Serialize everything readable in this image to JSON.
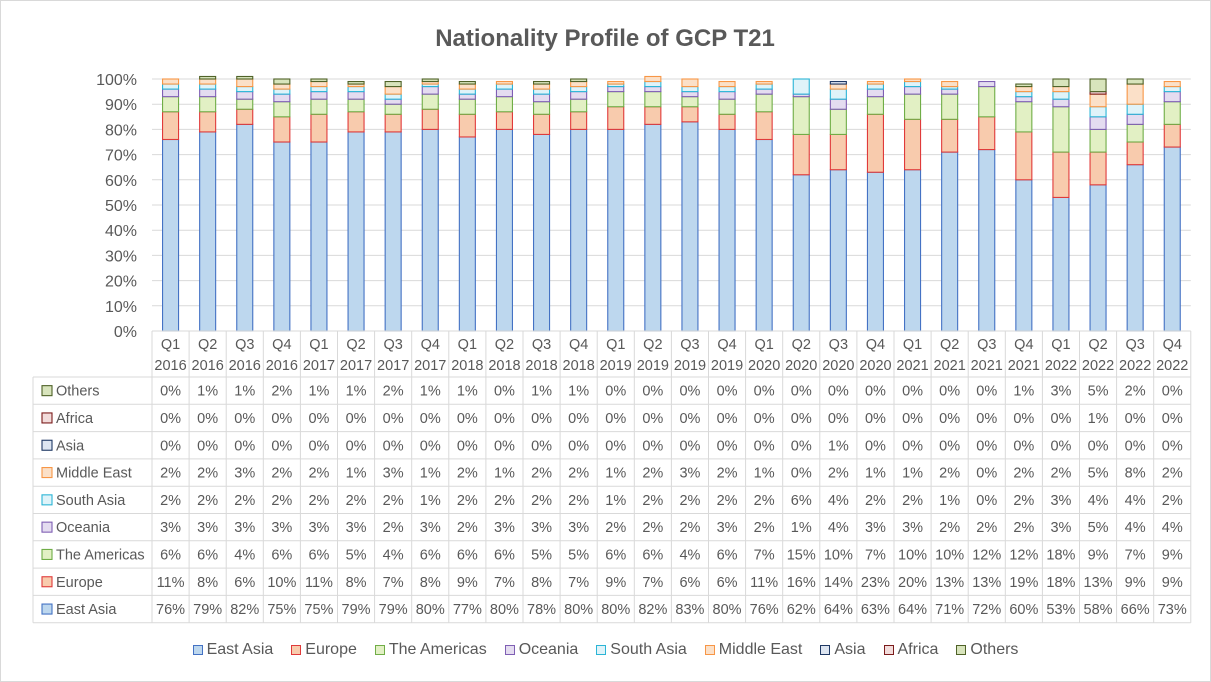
{
  "chart_data": {
    "type": "bar",
    "stacked": true,
    "title": "Nationality Profile of GCP T21",
    "categories": [
      [
        "Q1",
        "2016"
      ],
      [
        "Q2",
        "2016"
      ],
      [
        "Q3",
        "2016"
      ],
      [
        "Q4",
        "2016"
      ],
      [
        "Q1",
        "2017"
      ],
      [
        "Q2",
        "2017"
      ],
      [
        "Q3",
        "2017"
      ],
      [
        "Q4",
        "2017"
      ],
      [
        "Q1",
        "2018"
      ],
      [
        "Q2",
        "2018"
      ],
      [
        "Q3",
        "2018"
      ],
      [
        "Q4",
        "2018"
      ],
      [
        "Q1",
        "2019"
      ],
      [
        "Q2",
        "2019"
      ],
      [
        "Q3",
        "2019"
      ],
      [
        "Q4",
        "2019"
      ],
      [
        "Q1",
        "2020"
      ],
      [
        "Q2",
        "2020"
      ],
      [
        "Q3",
        "2020"
      ],
      [
        "Q4",
        "2020"
      ],
      [
        "Q1",
        "2021"
      ],
      [
        "Q2",
        "2021"
      ],
      [
        "Q3",
        "2021"
      ],
      [
        "Q4",
        "2021"
      ],
      [
        "Q1",
        "2022"
      ],
      [
        "Q2",
        "2022"
      ],
      [
        "Q3",
        "2022"
      ],
      [
        "Q4",
        "2022"
      ]
    ],
    "y_ticks": [
      "0%",
      "10%",
      "20%",
      "30%",
      "40%",
      "50%",
      "60%",
      "70%",
      "80%",
      "90%",
      "100%"
    ],
    "ylim": [
      0,
      100
    ],
    "grid": true,
    "legend_position": "bottom",
    "series": [
      {
        "name": "East Asia",
        "fill": "#bdd7ee",
        "stroke": "#4472c4",
        "values": [
          76,
          79,
          82,
          75,
          75,
          79,
          79,
          80,
          77,
          80,
          78,
          80,
          80,
          82,
          83,
          80,
          76,
          62,
          64,
          63,
          64,
          71,
          72,
          60,
          53,
          58,
          66,
          73
        ]
      },
      {
        "name": "Europe",
        "fill": "#f8cbad",
        "stroke": "#e03a3a",
        "values": [
          11,
          8,
          6,
          10,
          11,
          8,
          7,
          8,
          9,
          7,
          8,
          7,
          9,
          7,
          6,
          6,
          11,
          16,
          14,
          23,
          20,
          13,
          13,
          19,
          18,
          13,
          9,
          9
        ]
      },
      {
        "name": "The Americas",
        "fill": "#e2f0c4",
        "stroke": "#70ad47",
        "values": [
          6,
          6,
          4,
          6,
          6,
          5,
          4,
          6,
          6,
          6,
          5,
          5,
          6,
          6,
          4,
          6,
          7,
          15,
          10,
          7,
          10,
          10,
          12,
          12,
          18,
          9,
          7,
          9
        ]
      },
      {
        "name": "Oceania",
        "fill": "#e4dcf0",
        "stroke": "#7f5fb4",
        "values": [
          3,
          3,
          3,
          3,
          3,
          3,
          2,
          3,
          2,
          3,
          3,
          3,
          2,
          2,
          2,
          3,
          2,
          1,
          4,
          3,
          3,
          2,
          2,
          2,
          3,
          5,
          4,
          4
        ]
      },
      {
        "name": "South Asia",
        "fill": "#dff3f9",
        "stroke": "#2bb5d6",
        "values": [
          2,
          2,
          2,
          2,
          2,
          2,
          2,
          1,
          2,
          2,
          2,
          2,
          1,
          2,
          2,
          2,
          2,
          6,
          4,
          2,
          2,
          1,
          0,
          2,
          3,
          4,
          4,
          2
        ]
      },
      {
        "name": "Middle East",
        "fill": "#fbe0c8",
        "stroke": "#f79646",
        "values": [
          2,
          2,
          3,
          2,
          2,
          1,
          3,
          1,
          2,
          1,
          2,
          2,
          1,
          2,
          3,
          2,
          1,
          0,
          2,
          1,
          1,
          2,
          0,
          2,
          2,
          5,
          8,
          2
        ]
      },
      {
        "name": "Asia",
        "fill": "#dde5f1",
        "stroke": "#1f3864",
        "values": [
          0,
          0,
          0,
          0,
          0,
          0,
          0,
          0,
          0,
          0,
          0,
          0,
          0,
          0,
          0,
          0,
          0,
          0,
          1,
          0,
          0,
          0,
          0,
          0,
          0,
          0,
          0,
          0
        ]
      },
      {
        "name": "Africa",
        "fill": "#f2dcdb",
        "stroke": "#7b1b1b",
        "values": [
          0,
          0,
          0,
          0,
          0,
          0,
          0,
          0,
          0,
          0,
          0,
          0,
          0,
          0,
          0,
          0,
          0,
          0,
          0,
          0,
          0,
          0,
          0,
          0,
          0,
          1,
          0,
          0
        ]
      },
      {
        "name": "Others",
        "fill": "#d8e4bc",
        "stroke": "#4f6228",
        "values": [
          0,
          1,
          1,
          2,
          1,
          1,
          2,
          1,
          1,
          0,
          1,
          1,
          0,
          0,
          0,
          0,
          0,
          0,
          0,
          0,
          0,
          0,
          0,
          1,
          3,
          5,
          2,
          0
        ]
      }
    ],
    "table_row_order": [
      "Others",
      "Africa",
      "Asia",
      "Middle East",
      "South Asia",
      "Oceania",
      "The Americas",
      "Europe",
      "East Asia"
    ],
    "value_suffix": "%"
  }
}
